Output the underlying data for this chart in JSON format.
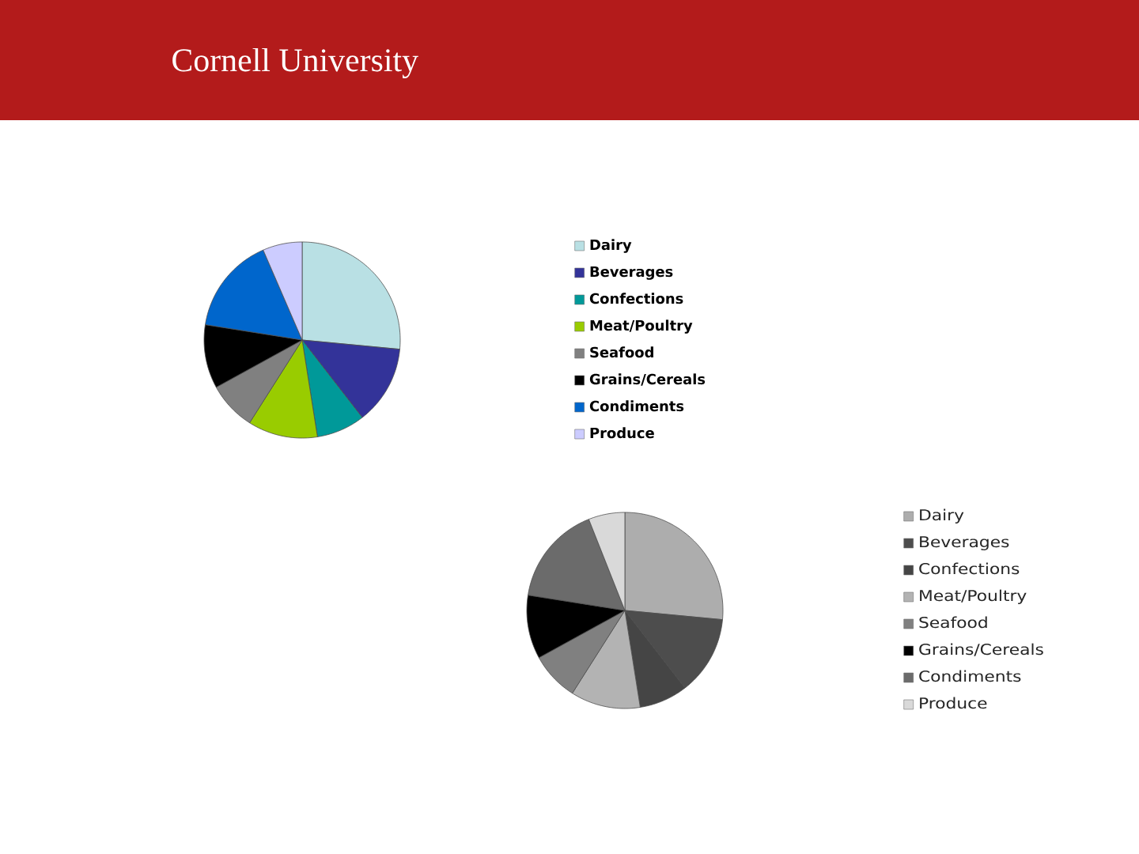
{
  "chart_data": [
    {
      "type": "pie",
      "annotations": [
        "Cornell University"
      ],
      "categories": [
        "Dairy",
        "Beverages",
        "Confections",
        "Meat/Poultry",
        "Seafood",
        "Grains/Cereals",
        "Condiments",
        "Produce"
      ],
      "values": [
        26.5,
        13,
        8,
        11.5,
        8,
        10.5,
        16,
        6.5
      ],
      "colors": [
        "#b9e0e4",
        "#333399",
        "#009999",
        "#99cc00",
        "#808080",
        "#000000",
        "#0066cc",
        "#ccccff"
      ],
      "legend": "right"
    },
    {
      "type": "pie",
      "categories": [
        "Dairy",
        "Beverages",
        "Confections",
        "Meat/Poultry",
        "Seafood",
        "Grains/Cereals",
        "Condiments",
        "Produce"
      ],
      "values": [
        26.5,
        13,
        8,
        11.5,
        8,
        10.5,
        16.5,
        6
      ],
      "colors": [
        "#adadad",
        "#4d4d4d",
        "#454545",
        "#b3b3b3",
        "#808080",
        "#000000",
        "#6b6b6b",
        "#d9d9d9"
      ],
      "legend": "right"
    }
  ]
}
